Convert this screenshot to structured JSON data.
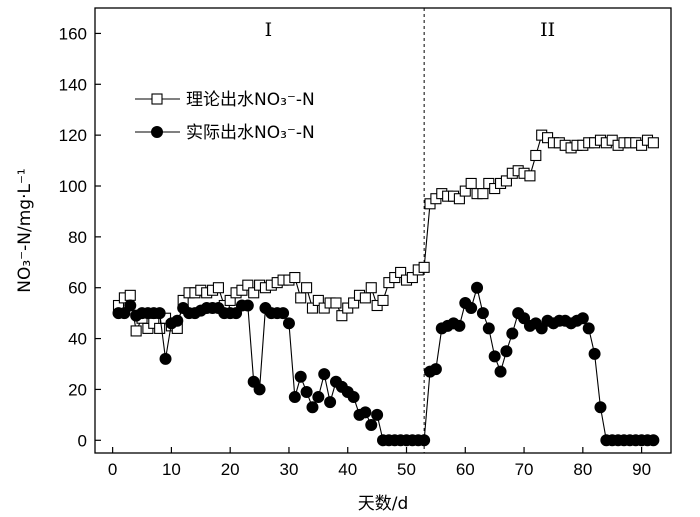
{
  "chart_data": {
    "type": "line",
    "xlabel": "天数/d",
    "ylabel": "NO₃⁻-N/mg·L⁻¹",
    "xlim": [
      -3,
      95
    ],
    "ylim": [
      -5,
      170
    ],
    "xticks": [
      0,
      10,
      20,
      30,
      40,
      50,
      60,
      70,
      80,
      90
    ],
    "yticks": [
      0,
      20,
      40,
      60,
      80,
      100,
      120,
      140,
      160
    ],
    "grid": false,
    "legend_position": "upper-left",
    "phase_divider_x": 53,
    "phases": [
      {
        "label": "I",
        "x": 26.5
      },
      {
        "label": "II",
        "x": 74
      }
    ],
    "series": [
      {
        "name": "理论出水NO₃⁻-N",
        "marker": "open-square",
        "x": [
          1,
          2,
          3,
          4,
          5,
          6,
          7,
          8,
          9,
          10,
          11,
          12,
          13,
          14,
          15,
          16,
          17,
          18,
          19,
          20,
          21,
          22,
          23,
          24,
          25,
          26,
          27,
          28,
          29,
          30,
          31,
          32,
          33,
          34,
          35,
          36,
          37,
          38,
          39,
          40,
          41,
          42,
          43,
          44,
          45,
          46,
          47,
          48,
          49,
          50,
          51,
          52,
          53,
          54,
          55,
          56,
          57,
          58,
          59,
          60,
          61,
          62,
          63,
          64,
          65,
          66,
          67,
          68,
          69,
          70,
          71,
          72,
          73,
          74,
          75,
          76,
          77,
          78,
          79,
          80,
          81,
          82,
          83,
          84,
          85,
          86,
          87,
          88,
          89,
          90,
          91,
          92
        ],
        "values": [
          53,
          56,
          57,
          43,
          48,
          44,
          46,
          44,
          48,
          45,
          44,
          55,
          58,
          58,
          59,
          58,
          59,
          60,
          53,
          55,
          58,
          59,
          61,
          58,
          61,
          60,
          61,
          62,
          63,
          63,
          64,
          56,
          60,
          52,
          55,
          52,
          54,
          54,
          49,
          52,
          54,
          57,
          56,
          60,
          53,
          55,
          62,
          64,
          66,
          63,
          64,
          67,
          68,
          93,
          95,
          97,
          96,
          96,
          95,
          98,
          101,
          97,
          97,
          101,
          99,
          101,
          102,
          105,
          106,
          105,
          104,
          112,
          120,
          119,
          117,
          117,
          116,
          115,
          116,
          116,
          117,
          117,
          118,
          117,
          118,
          116,
          117,
          117,
          117,
          116,
          118,
          117
        ]
      },
      {
        "name": "实际出水NO₃⁻-N",
        "marker": "filled-circle",
        "x": [
          1,
          2,
          3,
          4,
          5,
          6,
          7,
          8,
          9,
          10,
          11,
          12,
          13,
          14,
          15,
          16,
          17,
          18,
          19,
          20,
          21,
          22,
          23,
          24,
          25,
          26,
          27,
          28,
          29,
          30,
          31,
          32,
          33,
          34,
          35,
          36,
          37,
          38,
          39,
          40,
          41,
          42,
          43,
          44,
          45,
          46,
          47,
          48,
          49,
          50,
          51,
          52,
          53,
          54,
          55,
          56,
          57,
          58,
          59,
          60,
          61,
          62,
          63,
          64,
          65,
          66,
          67,
          68,
          69,
          70,
          71,
          72,
          73,
          74,
          75,
          76,
          77,
          78,
          79,
          80,
          81,
          82,
          83,
          84,
          85,
          86,
          87,
          88,
          89,
          90,
          91,
          92
        ],
        "values": [
          50,
          50,
          53,
          49,
          50,
          50,
          50,
          50,
          32,
          46,
          47,
          52,
          50,
          50,
          51,
          52,
          52,
          52,
          50,
          50,
          50,
          53,
          53,
          23,
          20,
          52,
          50,
          50,
          50,
          46,
          17,
          25,
          19,
          13,
          17,
          26,
          15,
          23,
          21,
          19,
          17,
          10,
          11,
          6,
          10,
          0,
          0,
          0,
          0,
          0,
          0,
          0,
          0,
          27,
          28,
          44,
          45,
          46,
          45,
          54,
          52,
          60,
          50,
          44,
          33,
          27,
          35,
          42,
          50,
          48,
          45,
          46,
          44,
          47,
          46,
          47,
          47,
          46,
          47,
          48,
          44,
          34,
          13,
          0,
          0,
          0,
          0,
          0,
          0,
          0,
          0,
          0
        ]
      }
    ]
  }
}
